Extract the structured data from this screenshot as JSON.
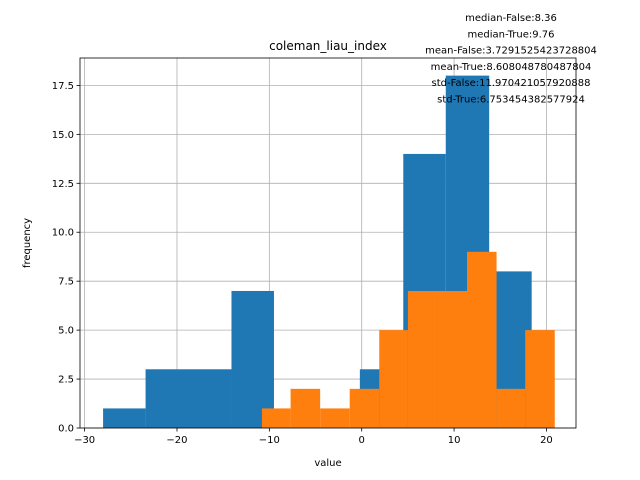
{
  "chart_data": {
    "type": "bar",
    "title": "coleman_liau_index",
    "xlabel": "value",
    "ylabel": "frequency",
    "xlim": [
      -30.5,
      23.2
    ],
    "ylim": [
      0,
      18.9
    ],
    "grid": true,
    "xticks": [
      -30,
      -20,
      -10,
      0,
      10,
      20
    ],
    "xtick_labels": [
      "−30",
      "−20",
      "−10",
      "0",
      "10",
      "20"
    ],
    "yticks": [
      0,
      2.5,
      5,
      7.5,
      10,
      12.5,
      15,
      17.5
    ],
    "ytick_labels": [
      "0.0",
      "2.5",
      "5.0",
      "7.5",
      "10.0",
      "12.5",
      "15.0",
      "17.5"
    ],
    "annotations": [
      "median-False:8.36",
      "median-True:9.76",
      "mean-False:3.7291525423728804",
      "mean-True:8.608048780487804",
      "std-False:11.970421057920888",
      "std-True:6.753454382577924"
    ],
    "series": [
      {
        "color": "#1f77b4",
        "bins": [
          {
            "x0": -28.0,
            "x1": -23.4,
            "value": 1
          },
          {
            "x0": -23.4,
            "x1": -18.7,
            "value": 3
          },
          {
            "x0": -18.7,
            "x1": -14.1,
            "value": 3
          },
          {
            "x0": -14.1,
            "x1": -9.5,
            "value": 7
          },
          {
            "x0": -9.5,
            "x1": -4.8,
            "value": 0
          },
          {
            "x0": -4.8,
            "x1": -0.2,
            "value": 0
          },
          {
            "x0": -0.2,
            "x1": 4.5,
            "value": 3
          },
          {
            "x0": 4.5,
            "x1": 9.1,
            "value": 14
          },
          {
            "x0": 9.1,
            "x1": 13.8,
            "value": 18
          },
          {
            "x0": 13.8,
            "x1": 18.4,
            "value": 8
          }
        ]
      },
      {
        "color": "#ff7f0e",
        "bins": [
          {
            "x0": -10.8,
            "x1": -7.7,
            "value": 1
          },
          {
            "x0": -7.7,
            "x1": -4.5,
            "value": 2
          },
          {
            "x0": -4.5,
            "x1": -1.3,
            "value": 1
          },
          {
            "x0": -1.3,
            "x1": 1.9,
            "value": 2
          },
          {
            "x0": 1.9,
            "x1": 5.0,
            "value": 5
          },
          {
            "x0": 5.0,
            "x1": 8.2,
            "value": 7
          },
          {
            "x0": 8.2,
            "x1": 11.4,
            "value": 7
          },
          {
            "x0": 11.4,
            "x1": 14.6,
            "value": 9
          },
          {
            "x0": 14.6,
            "x1": 17.7,
            "value": 2
          },
          {
            "x0": 17.7,
            "x1": 20.9,
            "value": 5
          }
        ]
      }
    ]
  }
}
